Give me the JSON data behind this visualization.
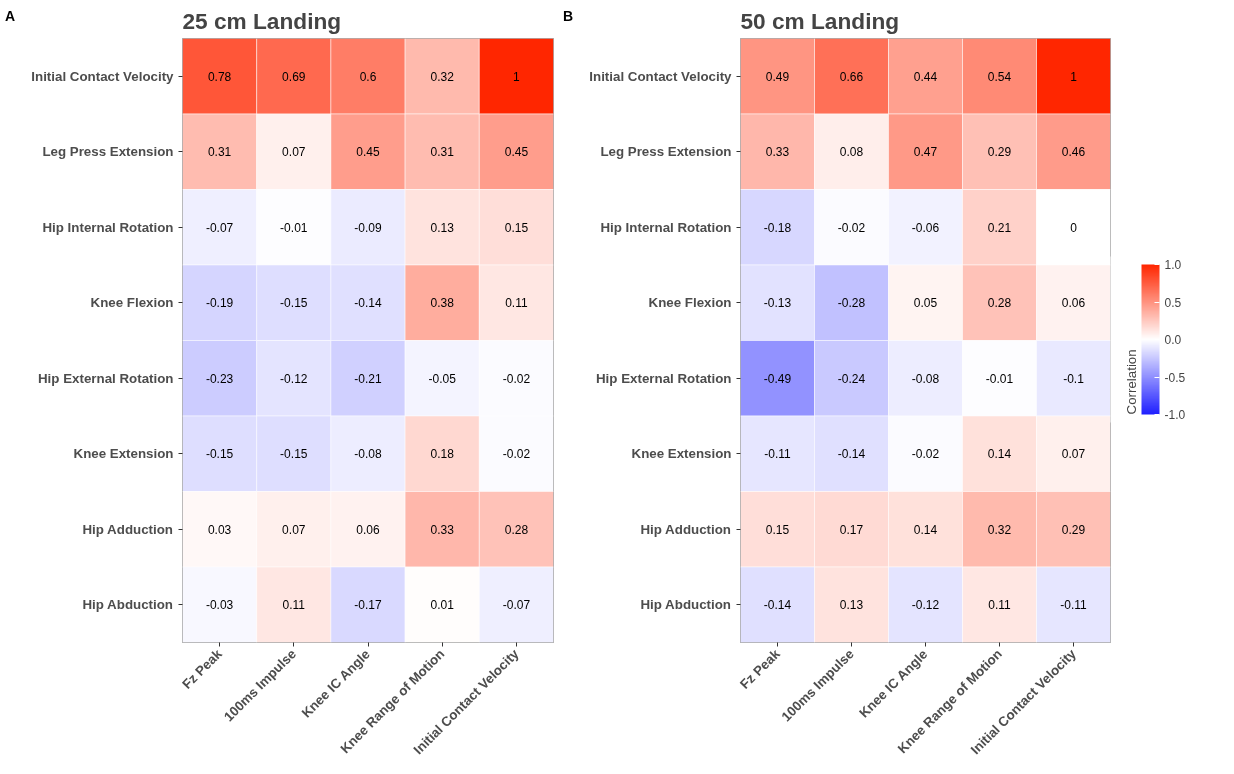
{
  "chart_data": [
    {
      "type": "heatmap",
      "title": "25 cm Landing",
      "annotations": [
        "A"
      ],
      "categories": [
        "Fz Peak",
        "100ms Impulse",
        "Knee IC Angle",
        "Knee Range of Motion",
        "Initial Contact Velocity"
      ],
      "y_categories": [
        "Initial Contact Velocity",
        "Leg Press Extension",
        "Hip Internal Rotation",
        "Knee Flexion",
        "Hip External Rotation",
        "Knee Extension",
        "Hip Adduction",
        "Hip Abduction"
      ],
      "cells": [
        [
          0.78,
          0.69,
          0.6,
          0.32,
          1
        ],
        [
          0.31,
          0.07,
          0.45,
          0.31,
          0.45
        ],
        [
          -0.07,
          -0.01,
          -0.09,
          0.13,
          0.15
        ],
        [
          -0.19,
          -0.15,
          -0.14,
          0.38,
          0.11
        ],
        [
          -0.23,
          -0.12,
          -0.21,
          -0.05,
          -0.02
        ],
        [
          -0.15,
          -0.15,
          -0.08,
          0.18,
          -0.02
        ],
        [
          0.03,
          0.07,
          0.06,
          0.33,
          0.28
        ],
        [
          -0.03,
          0.11,
          -0.17,
          0.01,
          -0.07
        ]
      ],
      "data_labels": true,
      "grid": false
    },
    {
      "type": "heatmap",
      "title": "50 cm Landing",
      "annotations": [
        "B"
      ],
      "categories": [
        "Fz Peak",
        "100ms Impulse",
        "Knee IC Angle",
        "Knee Range of Motion",
        "Initial Contact Velocity"
      ],
      "y_categories": [
        "Initial Contact Velocity",
        "Leg Press Extension",
        "Hip Internal Rotation",
        "Knee Flexion",
        "Hip External Rotation",
        "Knee Extension",
        "Hip Adduction",
        "Hip Abduction"
      ],
      "cells": [
        [
          0.49,
          0.66,
          0.44,
          0.54,
          1
        ],
        [
          0.33,
          0.08,
          0.47,
          0.29,
          0.46
        ],
        [
          -0.18,
          -0.02,
          -0.06,
          0.21,
          0
        ],
        [
          -0.13,
          -0.28,
          0.05,
          0.28,
          0.06
        ],
        [
          -0.49,
          -0.24,
          -0.08,
          -0.01,
          -0.1
        ],
        [
          -0.11,
          -0.14,
          -0.02,
          0.14,
          0.07
        ],
        [
          0.15,
          0.17,
          0.14,
          0.32,
          0.29
        ],
        [
          -0.14,
          0.13,
          -0.12,
          0.11,
          -0.11
        ]
      ],
      "data_labels": true,
      "grid": false,
      "clabel": "Correlation",
      "clim": [
        -1,
        1
      ],
      "cticks": [
        {
          "value": 1,
          "label": "1.0"
        },
        {
          "value": 0.5,
          "label": "0.5"
        },
        {
          "value": 0,
          "label": "0.0"
        },
        {
          "value": -0.5,
          "label": "-0.5"
        },
        {
          "value": -1,
          "label": "-1.0"
        }
      ]
    }
  ]
}
